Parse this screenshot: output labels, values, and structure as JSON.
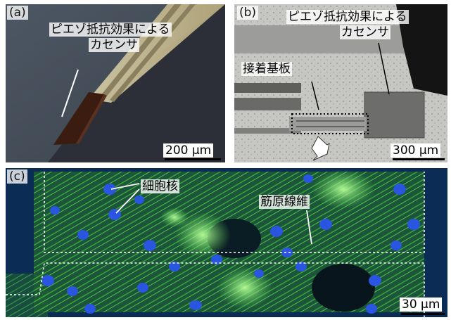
{
  "panel_a": {
    "label": "(a)",
    "annotation_line1": "ピエゾ抵抗効果による",
    "annotation_line2": "カセンサ",
    "scale_bar": "200 μm"
  },
  "panel_b": {
    "label": "(b)",
    "annotation_line1": "ピエゾ抵抗効果による",
    "annotation_line2": "カセンサ",
    "substrate_label": "接着基板",
    "scale_bar": "300 μm"
  },
  "panel_c": {
    "label": "(c)",
    "nucleus_label": "細胞核",
    "fiber_label": "筋原線維",
    "scale_bar": "30 μm"
  },
  "colors": {
    "nuclei": "#2a55e0",
    "fibers": "#3fbf3a",
    "background_c": "#0b2c54"
  }
}
